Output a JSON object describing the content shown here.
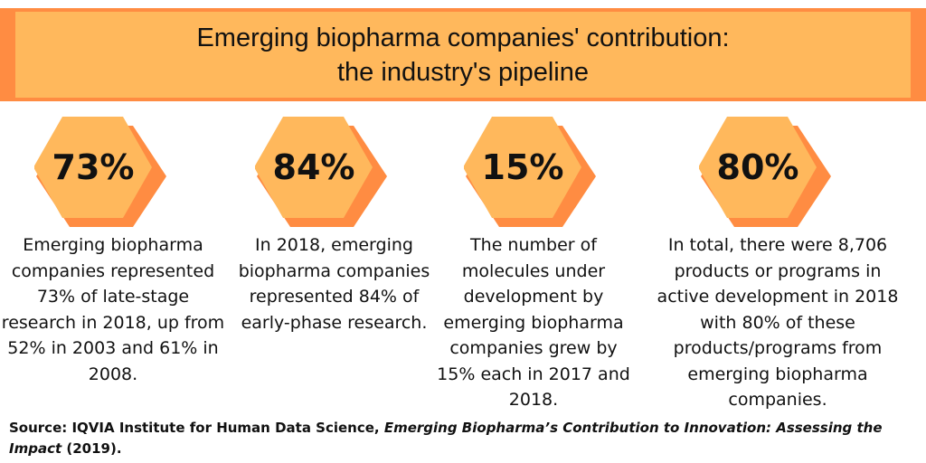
{
  "header": {
    "title_line_1": "Emerging biopharma companies' contribution:",
    "title_line_2": "the industry's pipeline"
  },
  "colors": {
    "title_band": "#FF8C42",
    "title_box": "#FFB85C",
    "hexagon_front": "#FFB85C",
    "hexagon_back": "#FF8C42"
  },
  "stats": [
    {
      "value": "73%",
      "text": "Emerging biopharma companies represented 73% of late-stage research in 2018, up from 52% in 2003 and 61% in 2008."
    },
    {
      "value": "84%",
      "text": "In 2018, emerging biopharma companies represented 84% of early-phase research."
    },
    {
      "value": "15%",
      "text": "The number of molecules under development by emerging biopharma companies grew  by 15% each in 2017 and 2018."
    },
    {
      "value": "80%",
      "text": "In total, there were 8,706 products or programs in active development in 2018 with 80% of these products/programs from emerging biopharma companies."
    }
  ],
  "source": {
    "prefix": "Source: IQVIA Institute for Human Data Science, ",
    "publication": "Emerging Biopharma’s Contribution to Innovation: Assessing the Impact",
    "suffix": " (2019)."
  }
}
